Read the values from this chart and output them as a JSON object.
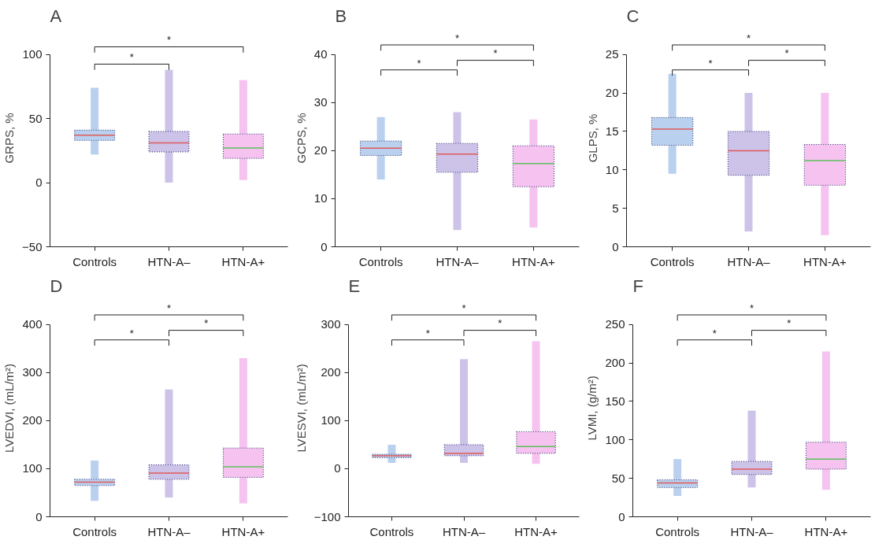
{
  "chart_data": [
    {
      "type": "box",
      "title": "A",
      "ylabel": "GRPS, %",
      "categories": [
        "Controls",
        "HTN-A–",
        "HTN-A+"
      ],
      "colors": [
        "#b9d0ee",
        "#cdc2e8",
        "#f6c2f0"
      ],
      "ylim": [
        -50,
        100
      ],
      "yticks": [
        {
          "value": -50,
          "label": "−50"
        },
        0,
        50,
        100
      ],
      "grid": false,
      "annotations": [
        "*",
        "*"
      ],
      "boxes": [
        {
          "low": 22,
          "q1": 33,
          "median": 37,
          "q3": 41,
          "high": 74
        },
        {
          "low": 0,
          "q1": 24,
          "median": 31,
          "q3": 40,
          "high": 88
        },
        {
          "low": 2,
          "q1": 19,
          "median": 27,
          "q3": 38,
          "high": 80
        }
      ]
    },
    {
      "type": "box",
      "title": "B",
      "ylabel": "GCPS, %",
      "categories": [
        "Controls",
        "HTN-A–",
        "HTN-A+"
      ],
      "colors": [
        "#b9d0ee",
        "#cdc2e8",
        "#f6c2f0"
      ],
      "ylim": [
        0,
        40
      ],
      "yticks": [
        0,
        10,
        20,
        30,
        40
      ],
      "grid": false,
      "annotations": [
        "*",
        "*",
        "*"
      ],
      "boxes": [
        {
          "low": 14,
          "q1": 19,
          "median": 20.5,
          "q3": 22,
          "high": 27
        },
        {
          "low": 3.5,
          "q1": 15.5,
          "median": 19.3,
          "q3": 21.5,
          "high": 28
        },
        {
          "low": 4,
          "q1": 12.5,
          "median": 17.3,
          "q3": 21,
          "high": 26.5
        }
      ]
    },
    {
      "type": "box",
      "title": "C",
      "ylabel": "GLPS, %",
      "categories": [
        "Controls",
        "HTN-A–",
        "HTN-A+"
      ],
      "colors": [
        "#b9d0ee",
        "#cdc2e8",
        "#f6c2f0"
      ],
      "ylim": [
        0,
        25
      ],
      "yticks": [
        0,
        5,
        10,
        15,
        20,
        25
      ],
      "grid": false,
      "annotations": [
        "*",
        "*",
        "*"
      ],
      "boxes": [
        {
          "low": 9.5,
          "q1": 13.2,
          "median": 15.3,
          "q3": 16.8,
          "high": 22.5
        },
        {
          "low": 2,
          "q1": 9.3,
          "median": 12.5,
          "q3": 15,
          "high": 20
        },
        {
          "low": 1.5,
          "q1": 8,
          "median": 11.2,
          "q3": 13.3,
          "high": 20
        }
      ]
    },
    {
      "type": "box",
      "title": "D",
      "ylabel": "LVEDVI, (mL/m²)",
      "categories": [
        "Controls",
        "HTN-A–",
        "HTN-A+"
      ],
      "colors": [
        "#b9d0ee",
        "#cdc2e8",
        "#f6c2f0"
      ],
      "ylim": [
        0,
        400
      ],
      "yticks": [
        0,
        100,
        200,
        300,
        400
      ],
      "grid": false,
      "annotations": [
        "*",
        "*",
        "*"
      ],
      "boxes": [
        {
          "low": 33,
          "q1": 65,
          "median": 72,
          "q3": 78,
          "high": 117
        },
        {
          "low": 40,
          "q1": 78,
          "median": 91,
          "q3": 108,
          "high": 265
        },
        {
          "low": 28,
          "q1": 82,
          "median": 104,
          "q3": 143,
          "high": 330
        }
      ]
    },
    {
      "type": "box",
      "title": "E",
      "ylabel": "LVESVI, (mL/m²)",
      "categories": [
        "Controls",
        "HTN-A–",
        "HTN-A+"
      ],
      "colors": [
        "#b9d0ee",
        "#cdc2e8",
        "#f6c2f0"
      ],
      "ylim": [
        -100,
        300
      ],
      "yticks": [
        {
          "value": -100,
          "label": "−100"
        },
        0,
        100,
        200,
        300
      ],
      "grid": false,
      "annotations": [
        "*",
        "*",
        "*"
      ],
      "boxes": [
        {
          "low": 12,
          "q1": 23,
          "median": 27,
          "q3": 30,
          "high": 50
        },
        {
          "low": 12,
          "q1": 27,
          "median": 32,
          "q3": 50,
          "high": 228
        },
        {
          "low": 10,
          "q1": 32,
          "median": 46,
          "q3": 77,
          "high": 265
        }
      ]
    },
    {
      "type": "box",
      "title": "F",
      "ylabel": "LVMI, (g/m²)",
      "categories": [
        "Controls",
        "HTN-A–",
        "HTN-A+"
      ],
      "colors": [
        "#b9d0ee",
        "#cdc2e8",
        "#f6c2f0"
      ],
      "ylim": [
        0,
        250
      ],
      "yticks": [
        0,
        50,
        100,
        150,
        200,
        250
      ],
      "grid": false,
      "annotations": [
        "*",
        "*",
        "*"
      ],
      "boxes": [
        {
          "low": 27,
          "q1": 38,
          "median": 44,
          "q3": 48,
          "high": 75
        },
        {
          "low": 38,
          "q1": 55,
          "median": 62,
          "q3": 72,
          "high": 138
        },
        {
          "low": 35,
          "q1": 62,
          "median": 75,
          "q3": 97,
          "high": 215
        }
      ]
    }
  ]
}
